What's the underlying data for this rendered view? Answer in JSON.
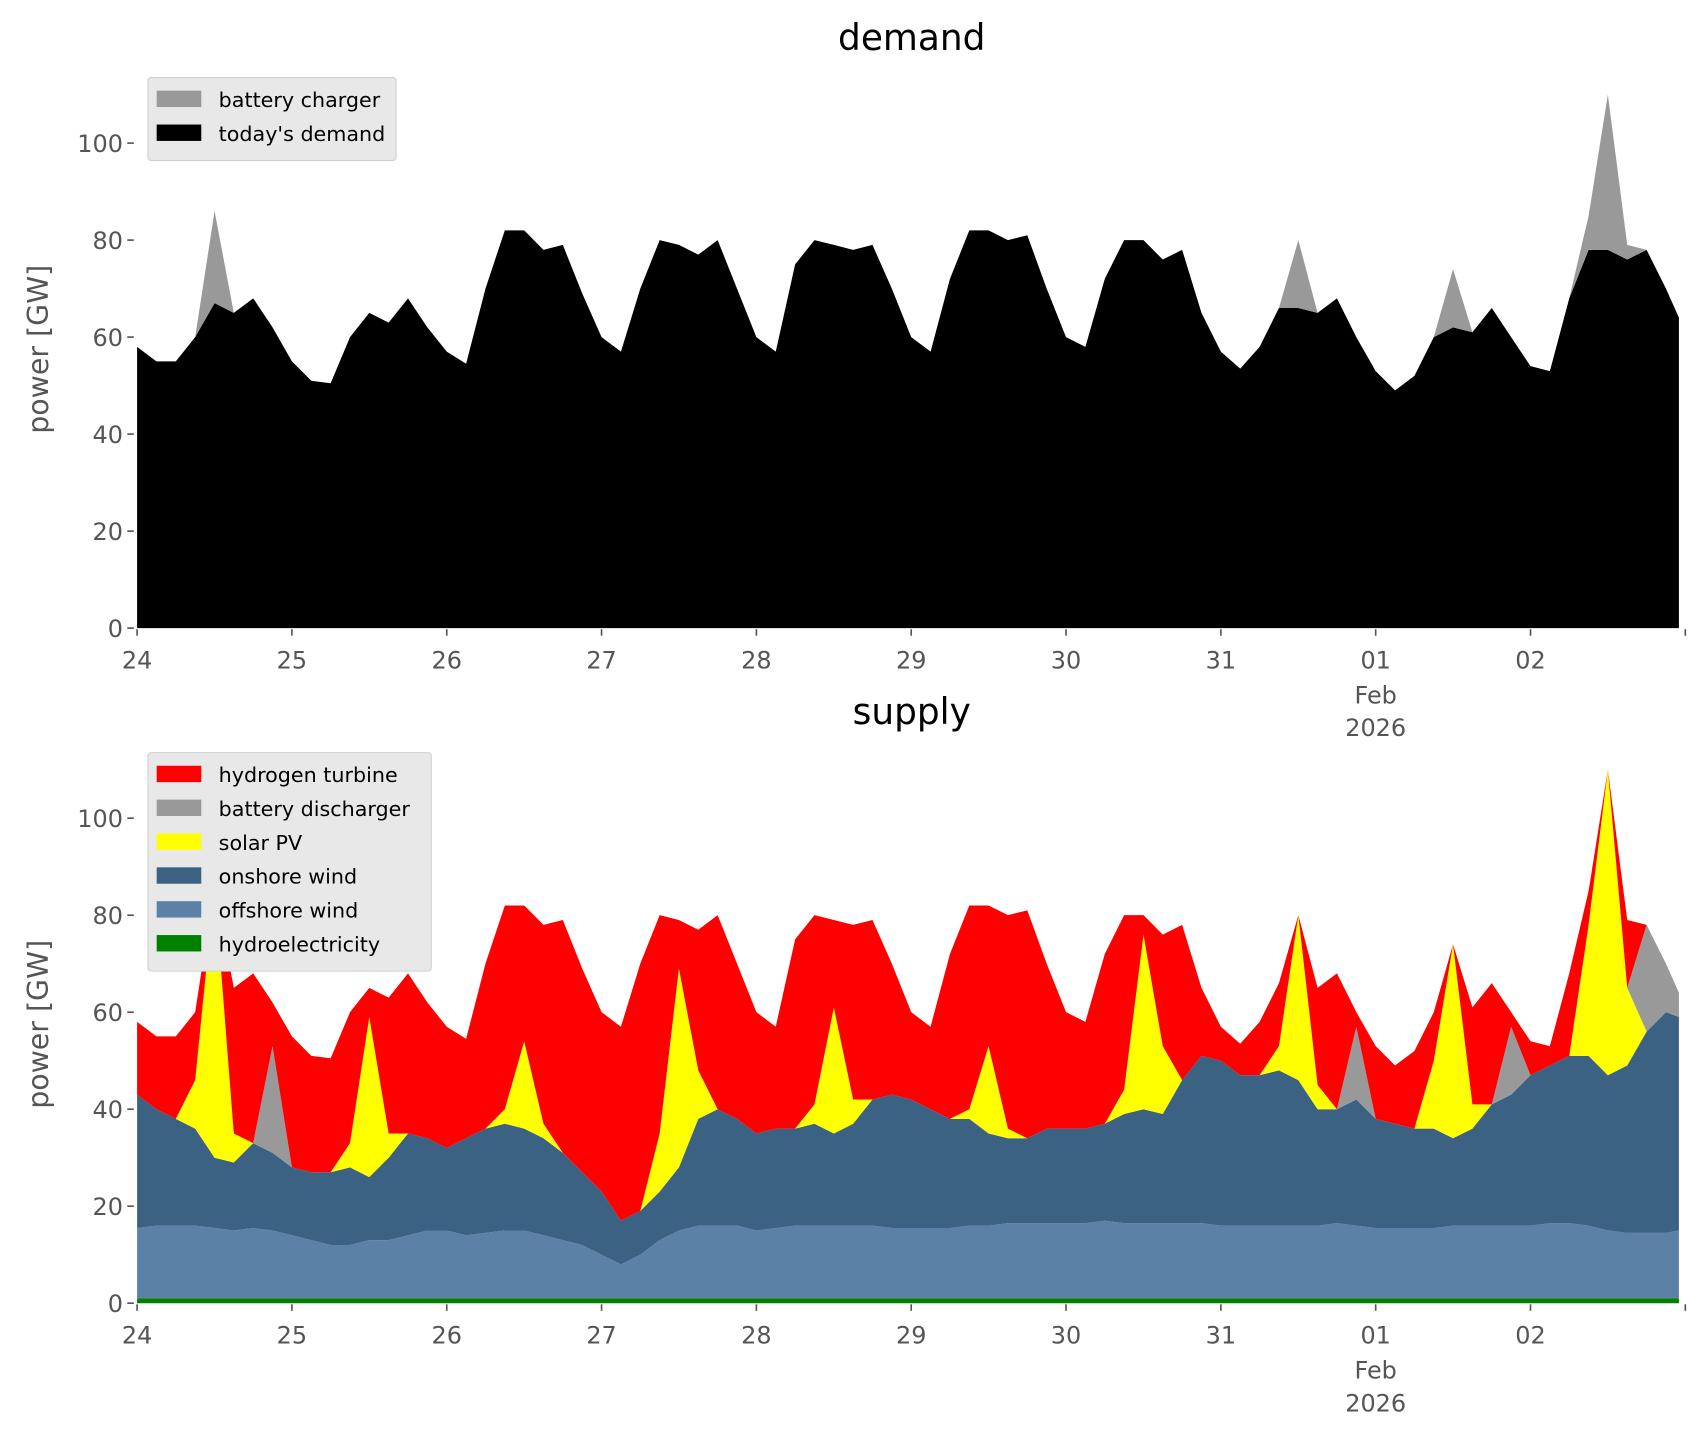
{
  "chart_data": [
    {
      "type": "area",
      "title": "demand",
      "ylabel": "power [GW]",
      "xlabel": "",
      "ylim": [
        0,
        115
      ],
      "yticks": [
        0,
        20,
        40,
        60,
        80,
        100
      ],
      "xticks": [
        {
          "day": 0,
          "label": "24"
        },
        {
          "day": 1,
          "label": "25"
        },
        {
          "day": 2,
          "label": "26"
        },
        {
          "day": 3,
          "label": "27"
        },
        {
          "day": 4,
          "label": "28"
        },
        {
          "day": 5,
          "label": "29"
        },
        {
          "day": 6,
          "label": "30"
        },
        {
          "day": 7,
          "label": "31"
        },
        {
          "day": 8,
          "label": "01",
          "sub": [
            "Feb",
            "2026"
          ]
        },
        {
          "day": 9,
          "label": "02"
        },
        {
          "day": 10,
          "label": ""
        }
      ],
      "x_unit": "hours since 2026-01-24 00:00",
      "legend_position": "top-left",
      "grid": false,
      "stack_order": [
        "today's demand",
        "battery charger"
      ],
      "legend_order": [
        "battery charger",
        "today's demand"
      ],
      "series": [
        {
          "name": "today's demand",
          "color": "#000000",
          "values": [
            58,
            55,
            55,
            60,
            67,
            65,
            68,
            62,
            55,
            51,
            50.5,
            60,
            65,
            63,
            68,
            62,
            57,
            54.5,
            70,
            82,
            82,
            78,
            79,
            69,
            60,
            57,
            70,
            80,
            79,
            77,
            80,
            70,
            60,
            57,
            75,
            80,
            79,
            78,
            79,
            70,
            60,
            57,
            72,
            82,
            82,
            80,
            81,
            70,
            60,
            58,
            72,
            80,
            80,
            76,
            78,
            65,
            57,
            53.5,
            58,
            66,
            66,
            65,
            68,
            60,
            53,
            49,
            52,
            60,
            62,
            61,
            66,
            60,
            54,
            53,
            68,
            78,
            78,
            76,
            78,
            70,
            64
          ]
        },
        {
          "name": "battery charger",
          "color": "#999999",
          "values": [
            0,
            0,
            0,
            0,
            19,
            0,
            0,
            0,
            0,
            0,
            0,
            0,
            0,
            0,
            0,
            0,
            0,
            0,
            0,
            0,
            0,
            0,
            0,
            0,
            0,
            0,
            0,
            0,
            0,
            0,
            0,
            0,
            0,
            0,
            0,
            0,
            0,
            0,
            0,
            0,
            0,
            0,
            0,
            0,
            0,
            0,
            0,
            0,
            0,
            0,
            0,
            0,
            0,
            0,
            0,
            0,
            0,
            0,
            0,
            0,
            14,
            0,
            0,
            0,
            0,
            0,
            0,
            0,
            12,
            0,
            0,
            0,
            0,
            0,
            0,
            7,
            32,
            3,
            0,
            0,
            0
          ]
        }
      ]
    },
    {
      "type": "area",
      "title": "supply",
      "ylabel": "power [GW]",
      "xlabel": "",
      "ylim": [
        0,
        115
      ],
      "yticks": [
        0,
        20,
        40,
        60,
        80,
        100
      ],
      "xticks": [
        {
          "day": 0,
          "label": "24"
        },
        {
          "day": 1,
          "label": "25"
        },
        {
          "day": 2,
          "label": "26"
        },
        {
          "day": 3,
          "label": "27"
        },
        {
          "day": 4,
          "label": "28"
        },
        {
          "day": 5,
          "label": "29"
        },
        {
          "day": 6,
          "label": "30"
        },
        {
          "day": 7,
          "label": "31"
        },
        {
          "day": 8,
          "label": "01",
          "sub": [
            "Feb",
            "2026"
          ]
        },
        {
          "day": 9,
          "label": "02"
        },
        {
          "day": 10,
          "label": ""
        }
      ],
      "x_unit": "hours since 2026-01-24 00:00",
      "legend_position": "top-left",
      "grid": false,
      "stack_order": [
        "hydroelectricity",
        "offshore wind",
        "onshore wind",
        "solar PV",
        "battery discharger",
        "hydrogen turbine"
      ],
      "legend_order": [
        "hydrogen turbine",
        "battery discharger",
        "solar PV",
        "onshore wind",
        "offshore wind",
        "hydroelectricity"
      ],
      "series": [
        {
          "name": "hydroelectricity",
          "color": "#008000",
          "values": [
            1,
            1,
            1,
            1,
            1,
            1,
            1,
            1,
            1,
            1,
            1,
            1,
            1,
            1,
            1,
            1,
            1,
            1,
            1,
            1,
            1,
            1,
            1,
            1,
            1,
            1,
            1,
            1,
            1,
            1,
            1,
            1,
            1,
            1,
            1,
            1,
            1,
            1,
            1,
            1,
            1,
            1,
            1,
            1,
            1,
            1,
            1,
            1,
            1,
            1,
            1,
            1,
            1,
            1,
            1,
            1,
            1,
            1,
            1,
            1,
            1,
            1,
            1,
            1,
            1,
            1,
            1,
            1,
            1,
            1,
            1,
            1,
            1,
            1,
            1,
            1,
            1,
            1,
            1,
            1,
            1
          ]
        },
        {
          "name": "offshore wind",
          "color": "#5b82a6",
          "values": [
            14.5,
            15,
            15,
            15,
            14.5,
            14,
            14.5,
            14,
            13,
            12,
            11,
            11,
            12,
            12,
            13,
            14,
            14,
            13,
            13.5,
            14,
            14,
            13,
            12,
            11,
            9,
            7,
            9,
            12,
            14,
            15,
            15,
            15,
            14,
            14.5,
            15,
            15,
            15,
            15,
            15,
            14.5,
            14.5,
            14.5,
            14.5,
            15,
            15,
            15.5,
            15.5,
            15.5,
            15.5,
            15.5,
            16,
            15.5,
            15.5,
            15.5,
            15.5,
            15.5,
            15,
            15,
            15,
            15,
            15,
            15,
            15.5,
            15,
            14.5,
            14.5,
            14.5,
            14.5,
            15,
            15,
            15,
            15,
            15,
            15.5,
            15.5,
            15,
            14,
            13.5,
            13.5,
            13.5,
            14
          ]
        },
        {
          "name": "onshore wind",
          "color": "#3b6283",
          "values": [
            27.5,
            24,
            22,
            20,
            14.5,
            14,
            17.5,
            16,
            14,
            14,
            15,
            16,
            13,
            17,
            21,
            19,
            17,
            20,
            21.5,
            22,
            21,
            20,
            18,
            15,
            13,
            9,
            9,
            10,
            13,
            22,
            24,
            22,
            20,
            20.5,
            20,
            21,
            19,
            21,
            26,
            27.5,
            26.5,
            24.5,
            22.5,
            22,
            19,
            17.5,
            17.5,
            19.5,
            19.5,
            19.5,
            20,
            22.5,
            23.5,
            22.5,
            29.5,
            34.5,
            34,
            31,
            31,
            32,
            30,
            24,
            23.5,
            26,
            22.5,
            21.5,
            20.5,
            20.5,
            18,
            20,
            25,
            27,
            31,
            32.5,
            34.5,
            35,
            32,
            34.5,
            41.5,
            45.5,
            44
          ]
        },
        {
          "name": "solar PV",
          "color": "#ffff00",
          "values": [
            0,
            0,
            0,
            10,
            56,
            6,
            0,
            0,
            0,
            0,
            0,
            5,
            33,
            5,
            0,
            0,
            0,
            0,
            0,
            3,
            18,
            3,
            0,
            0,
            0,
            0,
            0,
            12,
            41,
            10,
            0,
            0,
            0,
            0,
            0,
            4,
            26,
            5,
            0,
            0,
            0,
            0,
            0,
            2,
            18,
            2,
            0,
            0,
            0,
            0,
            0,
            5,
            36,
            14,
            0,
            0,
            0,
            0,
            0,
            5,
            34,
            5,
            0,
            0,
            0,
            0,
            0,
            14,
            40,
            5,
            0,
            0,
            0,
            0,
            0,
            27,
            63,
            16,
            0,
            0,
            0
          ]
        },
        {
          "name": "battery discharger",
          "color": "#999999",
          "values": [
            0,
            0,
            0,
            0,
            0,
            0,
            0,
            22,
            0,
            0,
            0,
            0,
            0,
            0,
            0,
            0,
            0,
            0,
            0,
            0,
            0,
            0,
            0,
            0,
            0,
            0,
            0,
            0,
            0,
            0,
            0,
            0,
            0,
            0,
            0,
            0,
            0,
            0,
            0,
            0,
            0,
            0,
            0,
            0,
            0,
            0,
            0,
            0,
            0,
            0,
            0,
            0,
            0,
            0,
            0,
            0,
            0,
            0,
            0,
            0,
            0,
            0,
            0,
            15,
            0,
            0,
            0,
            0,
            0,
            0,
            0,
            14,
            0,
            0,
            0,
            0,
            0,
            0,
            22,
            10,
            5
          ]
        },
        {
          "name": "hydrogen turbine",
          "color": "#ff0000",
          "values": [
            15,
            15,
            17,
            14,
            0,
            30,
            35,
            9,
            27,
            24,
            23.5,
            27,
            6,
            28,
            33,
            28,
            25,
            20.5,
            34,
            42,
            28,
            41,
            48,
            42,
            37,
            40,
            51,
            45,
            10,
            29,
            40,
            32,
            25,
            21,
            39,
            39,
            18,
            36,
            37,
            27,
            18,
            17,
            34,
            42,
            29,
            44,
            47,
            34,
            24,
            22,
            35,
            36,
            4,
            23,
            32,
            14,
            7,
            6.5,
            11,
            13,
            0,
            20,
            28,
            3,
            15,
            12,
            16,
            10,
            0,
            20,
            25,
            3,
            7,
            4,
            17,
            7,
            0,
            14,
            0,
            0,
            0
          ]
        }
      ]
    }
  ],
  "time_hours": [
    0,
    3,
    6,
    9,
    12,
    15,
    18,
    21,
    24,
    27,
    30,
    33,
    36,
    39,
    42,
    45,
    48,
    51,
    54,
    57,
    60,
    63,
    66,
    69,
    72,
    75,
    78,
    81,
    84,
    87,
    90,
    93,
    96,
    99,
    102,
    105,
    108,
    111,
    114,
    117,
    120,
    123,
    126,
    129,
    132,
    135,
    138,
    141,
    144,
    147,
    150,
    153,
    156,
    159,
    162,
    165,
    168,
    171,
    174,
    177,
    180,
    183,
    186,
    189,
    192,
    195,
    198,
    201,
    204,
    207,
    210,
    213,
    216,
    219,
    222,
    225,
    228,
    231,
    234,
    237,
    239
  ]
}
